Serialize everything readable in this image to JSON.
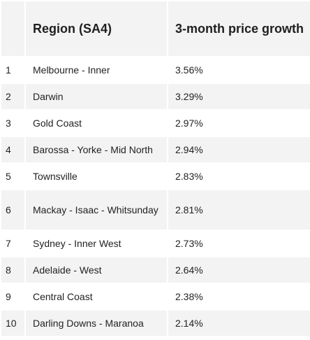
{
  "table": {
    "headers": [
      "",
      "Region (SA4)",
      "3-month price growth"
    ],
    "rows": [
      {
        "rank": "1",
        "region": "Melbourne - Inner",
        "growth": "3.56%"
      },
      {
        "rank": "2",
        "region": "Darwin",
        "growth": "3.29%"
      },
      {
        "rank": "3",
        "region": "Gold Coast",
        "growth": "2.97%"
      },
      {
        "rank": "4",
        "region": "Barossa - Yorke - Mid North",
        "growth": "2.94%"
      },
      {
        "rank": "5",
        "region": "Townsville",
        "growth": "2.83%"
      },
      {
        "rank": "6",
        "region": "Mackay - Isaac - Whitsunday",
        "growth": "2.81%"
      },
      {
        "rank": "7",
        "region": "Sydney - Inner West",
        "growth": "2.73%"
      },
      {
        "rank": "8",
        "region": "Adelaide - West",
        "growth": "2.64%"
      },
      {
        "rank": "9",
        "region": "Central Coast",
        "growth": "2.38%"
      },
      {
        "rank": "10",
        "region": "Darling Downs - Maranoa",
        "growth": "2.14%"
      }
    ]
  },
  "colors": {
    "header_bg": "#f3f3f3",
    "stripe_bg": "#f3f3f3",
    "text": "#222222"
  }
}
